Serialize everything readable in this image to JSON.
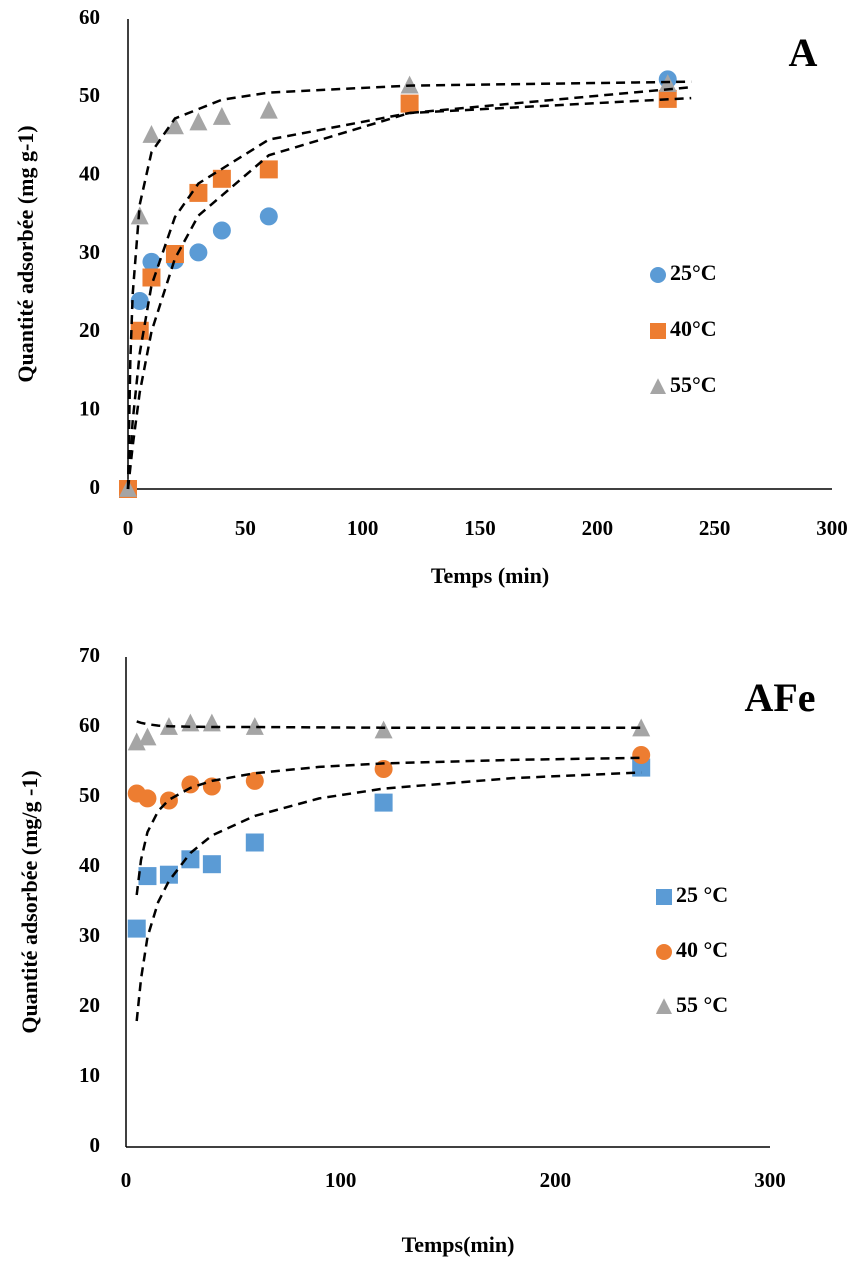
{
  "chart_data": [
    {
      "type": "scatter",
      "title": "A",
      "xlabel": "Temps (min)",
      "ylabel": "Quantité adsorbée (mg g-1)",
      "xlim": [
        0,
        300
      ],
      "ylim": [
        0,
        60
      ],
      "xticks": [
        0,
        50,
        100,
        150,
        200,
        250,
        300
      ],
      "yticks": [
        0,
        10,
        20,
        30,
        40,
        50,
        60
      ],
      "legend": "right",
      "grid": false,
      "series": [
        {
          "name": "25°C",
          "color": "#5b9bd5",
          "marker": "circle",
          "x": [
            0,
            5,
            10,
            20,
            30,
            40,
            60,
            230
          ],
          "values": [
            0,
            24,
            29,
            29.2,
            30.2,
            33,
            34.8,
            52.3
          ]
        },
        {
          "name": "40°C",
          "color": "#ed7d31",
          "marker": "square",
          "x": [
            0,
            5,
            10,
            20,
            30,
            40,
            60,
            120,
            230
          ],
          "values": [
            0,
            20.2,
            27,
            30,
            37.8,
            39.6,
            40.8,
            49.2,
            49.8
          ]
        },
        {
          "name": "55°C",
          "color": "#a5a5a5",
          "marker": "triangle",
          "x": [
            0,
            5,
            10,
            20,
            30,
            40,
            60,
            120,
            230
          ],
          "values": [
            0,
            34.8,
            45.2,
            46.3,
            46.8,
            47.5,
            48.3,
            51.5,
            51.7
          ]
        }
      ],
      "fit_color": "#000000",
      "fits": [
        {
          "x": [
            0,
            1,
            2,
            5,
            10,
            20,
            40,
            60,
            120,
            240
          ],
          "values": [
            0,
            16.3,
            24.9,
            36.3,
            43,
            47.3,
            49.7,
            50.6,
            51.5,
            52
          ]
        },
        {
          "x": [
            0,
            2,
            5,
            10,
            20,
            30,
            60,
            120,
            240
          ],
          "values": [
            0,
            8.7,
            17.3,
            26,
            34.7,
            39,
            44.6,
            48,
            49.9
          ]
        },
        {
          "x": [
            0,
            2,
            5,
            10,
            20,
            30,
            60,
            120,
            240
          ],
          "values": [
            0,
            5.5,
            12.3,
            20.1,
            29.4,
            34.9,
            42.6,
            48,
            51.3
          ]
        }
      ]
    },
    {
      "type": "scatter",
      "title": "AFe",
      "xlabel": "Temps(min)",
      "ylabel": "Quantité adsorbée (mg/g -1)",
      "xlim": [
        0,
        300
      ],
      "ylim": [
        0,
        70
      ],
      "xticks": [
        0,
        100,
        200,
        300
      ],
      "yticks": [
        0,
        10,
        20,
        30,
        40,
        50,
        60,
        70
      ],
      "legend": "right",
      "grid": false,
      "series": [
        {
          "name": "25 °C",
          "color": "#5b9bd5",
          "marker": "square",
          "x": [
            5,
            10,
            20,
            30,
            40,
            60,
            120,
            240
          ],
          "values": [
            31.2,
            38.7,
            38.9,
            41.1,
            40.4,
            43.5,
            49.2,
            54.2
          ]
        },
        {
          "name": "40 °C",
          "color": "#ed7d31",
          "marker": "circle",
          "x": [
            5,
            10,
            20,
            30,
            40,
            60,
            120,
            240
          ],
          "values": [
            50.5,
            49.8,
            49.5,
            51.8,
            51.5,
            52.3,
            54,
            56
          ]
        },
        {
          "name": "55 °C",
          "color": "#a5a5a5",
          "marker": "triangle",
          "x": [
            5,
            10,
            20,
            30,
            40,
            60,
            120,
            240
          ],
          "values": [
            57.8,
            58.5,
            60,
            60.5,
            60.5,
            60,
            59.5,
            59.8
          ]
        }
      ],
      "fit_color": "#000000",
      "fits": [
        {
          "x": [
            5,
            7,
            10,
            15,
            20,
            30,
            40,
            60,
            90,
            120,
            180,
            240
          ],
          "values": [
            18,
            24,
            30,
            35,
            38,
            42,
            44.5,
            47.3,
            49.8,
            51.2,
            52.7,
            53.5
          ]
        },
        {
          "x": [
            5,
            7,
            10,
            15,
            20,
            30,
            40,
            60,
            90,
            120,
            180,
            240
          ],
          "values": [
            36,
            41,
            45,
            48,
            49.6,
            51.3,
            52.3,
            53.4,
            54.3,
            54.8,
            55.3,
            55.6
          ]
        },
        {
          "x": [
            5,
            7,
            10,
            15,
            20,
            30,
            40,
            60,
            90,
            120,
            180,
            240
          ],
          "values": [
            60.8,
            60.6,
            60.4,
            60.2,
            60.1,
            60.05,
            60,
            60,
            59.95,
            59.9,
            59.9,
            59.9
          ]
        }
      ]
    }
  ]
}
